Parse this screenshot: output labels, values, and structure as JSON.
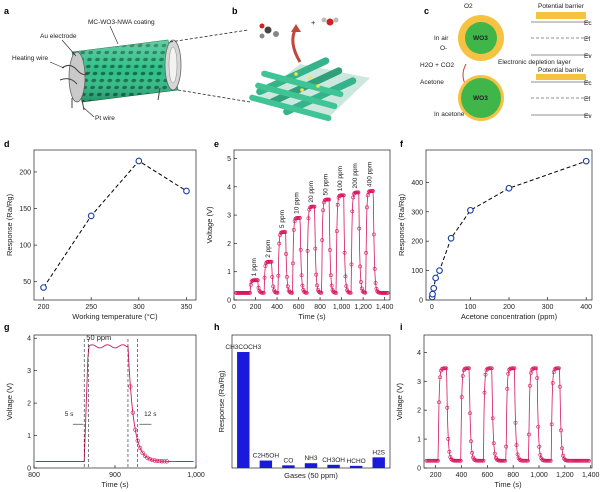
{
  "panels": {
    "a": {
      "label": "a",
      "texts": {
        "coating": "MC-WO3-NWA coating",
        "electrode": "Au electrode",
        "heating": "Heating wire",
        "pt": "Pt wire"
      }
    },
    "b": {
      "label": "b",
      "mol_sep": "+"
    },
    "c": {
      "label": "c",
      "in_air": "In air",
      "in_acetone": "In acetone",
      "wo3": "WO3",
      "o2": "O2",
      "o_minus": "O-",
      "h2o_co2": "H2O + CO2",
      "acetone": "Acetone",
      "depletion": "Electronic depletion layer",
      "barrier": "Potential barrier",
      "ec": "Ec",
      "ef": "Ef",
      "ev": "Ev"
    },
    "d": {
      "label": "d"
    },
    "e": {
      "label": "e"
    },
    "f": {
      "label": "f"
    },
    "g": {
      "label": "g"
    },
    "h": {
      "label": "h"
    },
    "i": {
      "label": "i"
    }
  },
  "chart_data": [
    {
      "id": "d",
      "type": "line",
      "xlabel": "Working temperature (°C)",
      "ylabel": "Response (Ra/Rg)",
      "x": [
        200,
        250,
        300,
        350
      ],
      "y": [
        42,
        140,
        215,
        174
      ],
      "xlim": [
        190,
        360
      ],
      "ylim": [
        25,
        230
      ],
      "xticks": [
        200,
        250,
        300,
        350
      ],
      "yticks": [
        50,
        100,
        150,
        200
      ],
      "color": "#1a3fa6",
      "marker": "open-circle",
      "line": "dashed"
    },
    {
      "id": "e",
      "type": "line",
      "xlabel": "Time (s)",
      "ylabel": "Voltage (V)",
      "xlim": [
        0,
        1450
      ],
      "ylim": [
        0,
        5.3
      ],
      "xticks": [
        0,
        200,
        400,
        600,
        800,
        1000,
        1200,
        1400
      ],
      "xticklabels": [
        "0",
        "200",
        "400",
        "600",
        "800",
        "1,000",
        "1,200",
        "1,400"
      ],
      "yticks": [
        0,
        1,
        2,
        3,
        4,
        5
      ],
      "baseline": 0.25,
      "pulses": [
        {
          "label": "1 ppm",
          "start": 150,
          "peak": 0.7
        },
        {
          "label": "2 ppm",
          "start": 280,
          "peak": 1.35
        },
        {
          "label": "5 ppm",
          "start": 410,
          "peak": 2.4
        },
        {
          "label": "10 ppm",
          "start": 545,
          "peak": 2.9
        },
        {
          "label": "20 ppm",
          "start": 680,
          "peak": 3.3
        },
        {
          "label": "50 ppm",
          "start": 815,
          "peak": 3.55
        },
        {
          "label": "100 ppm",
          "start": 950,
          "peak": 3.7
        },
        {
          "label": "200 ppm",
          "start": 1090,
          "peak": 3.8
        },
        {
          "label": "400 ppm",
          "start": 1225,
          "peak": 3.85
        }
      ],
      "pulse_width": 70,
      "color": "#d6165e"
    },
    {
      "id": "f",
      "type": "line",
      "xlabel": "Acetone concentration (ppm)",
      "ylabel": "Response (Ra/Rg)",
      "x": [
        1,
        2,
        5,
        10,
        20,
        50,
        100,
        200,
        400
      ],
      "y": [
        10,
        20,
        40,
        75,
        100,
        210,
        305,
        380,
        472
      ],
      "xlim": [
        -15,
        415
      ],
      "ylim": [
        0,
        510
      ],
      "xticks": [
        0,
        100,
        200,
        300,
        400
      ],
      "yticks": [
        0,
        100,
        200,
        300,
        400
      ],
      "color": "#1a3fa6",
      "marker": "open-circle",
      "line": "dashed"
    },
    {
      "id": "g",
      "type": "line",
      "xlabel": "Time (s)",
      "ylabel": "Voltage (V)",
      "xlim": [
        800,
        1000
      ],
      "ylim": [
        0,
        4.1
      ],
      "xticks": [
        800,
        900,
        1000
      ],
      "xticklabels": [
        "800",
        "900",
        "1,000"
      ],
      "yticks": [
        0,
        1,
        2,
        3,
        4
      ],
      "baseline": 0.2,
      "plateau": 3.75,
      "rise": [
        862,
        867
      ],
      "fall": [
        916,
        935
      ],
      "annotations": {
        "level": "50 ppm",
        "response_time": "5 s",
        "recovery_time": "12 s"
      },
      "vlines": [
        862,
        867,
        916,
        928
      ],
      "color": "#d6165e"
    },
    {
      "id": "h",
      "type": "bar",
      "xlabel": "Gases (50 ppm)",
      "ylabel": "Response (Ra/Rg)",
      "categories": [
        "CH3COCH3",
        "C2H5OH",
        "CO",
        "NH3",
        "CH3OH",
        "HCHO",
        "H2S"
      ],
      "values": [
        218,
        14,
        5,
        9,
        6,
        4,
        20
      ],
      "ylim": [
        0,
        250
      ],
      "color": "#1a1adc"
    },
    {
      "id": "i",
      "type": "line",
      "xlabel": "Time (s)",
      "ylabel": "Voltage (V)",
      "xlim": [
        110,
        1410
      ],
      "ylim": [
        0,
        4.6
      ],
      "xticks": [
        200,
        400,
        600,
        800,
        1000,
        1200,
        1400
      ],
      "xticklabels": [
        "200",
        "400",
        "600",
        "800",
        "1,000",
        "1,200",
        "1,400"
      ],
      "yticks": [
        0,
        1,
        2,
        3,
        4
      ],
      "baseline": 0.25,
      "peak": 3.45,
      "pulse_starts": [
        220,
        395,
        570,
        745,
        920,
        1095
      ],
      "pulse_width": 65,
      "color": "#d6165e"
    }
  ]
}
